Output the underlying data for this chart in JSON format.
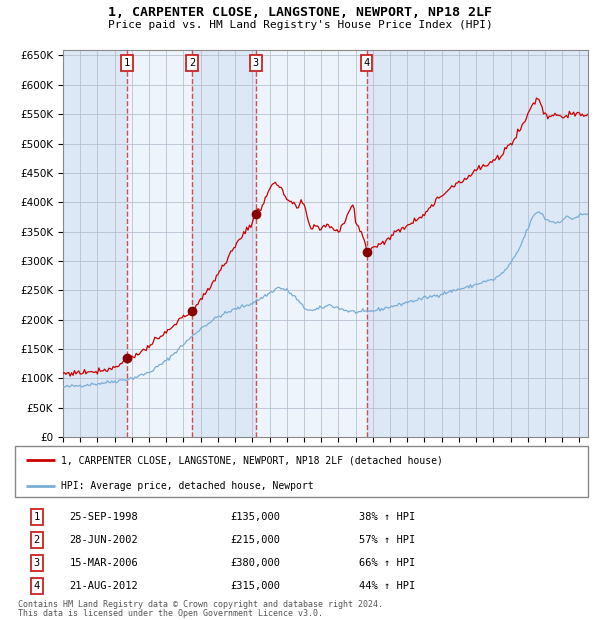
{
  "title": "1, CARPENTER CLOSE, LANGSTONE, NEWPORT, NP18 2LF",
  "subtitle": "Price paid vs. HM Land Registry's House Price Index (HPI)",
  "legend_label_red": "1, CARPENTER CLOSE, LANGSTONE, NEWPORT, NP18 2LF (detached house)",
  "legend_label_blue": "HPI: Average price, detached house, Newport",
  "footer1": "Contains HM Land Registry data © Crown copyright and database right 2024.",
  "footer2": "This data is licensed under the Open Government Licence v3.0.",
  "sales": [
    {
      "num": 1,
      "date": "25-SEP-1998",
      "price": 135000,
      "pct": "38%",
      "date_dec": 1998.73
    },
    {
      "num": 2,
      "date": "28-JUN-2002",
      "price": 215000,
      "pct": "57%",
      "date_dec": 2002.49
    },
    {
      "num": 3,
      "date": "15-MAR-2006",
      "price": 380000,
      "pct": "66%",
      "date_dec": 2006.2
    },
    {
      "num": 4,
      "date": "21-AUG-2012",
      "price": 315000,
      "pct": "44%",
      "date_dec": 2012.64
    }
  ],
  "ylim": [
    0,
    660000
  ],
  "yticks": [
    0,
    50000,
    100000,
    150000,
    200000,
    250000,
    300000,
    350000,
    400000,
    450000,
    500000,
    550000,
    600000,
    650000
  ],
  "xlim_start": 1995.0,
  "xlim_end": 2025.5,
  "background_color": "#ffffff",
  "plot_bg_color": "#dce8f5",
  "grid_color": "#b0b8c8",
  "red_line_color": "#cc0000",
  "blue_line_color": "#7aaed6",
  "sale_marker_color": "#880000",
  "dashed_line_color": "#cc3333",
  "label_box_color": "#cc2222",
  "white_band_color": "#eef4fb"
}
